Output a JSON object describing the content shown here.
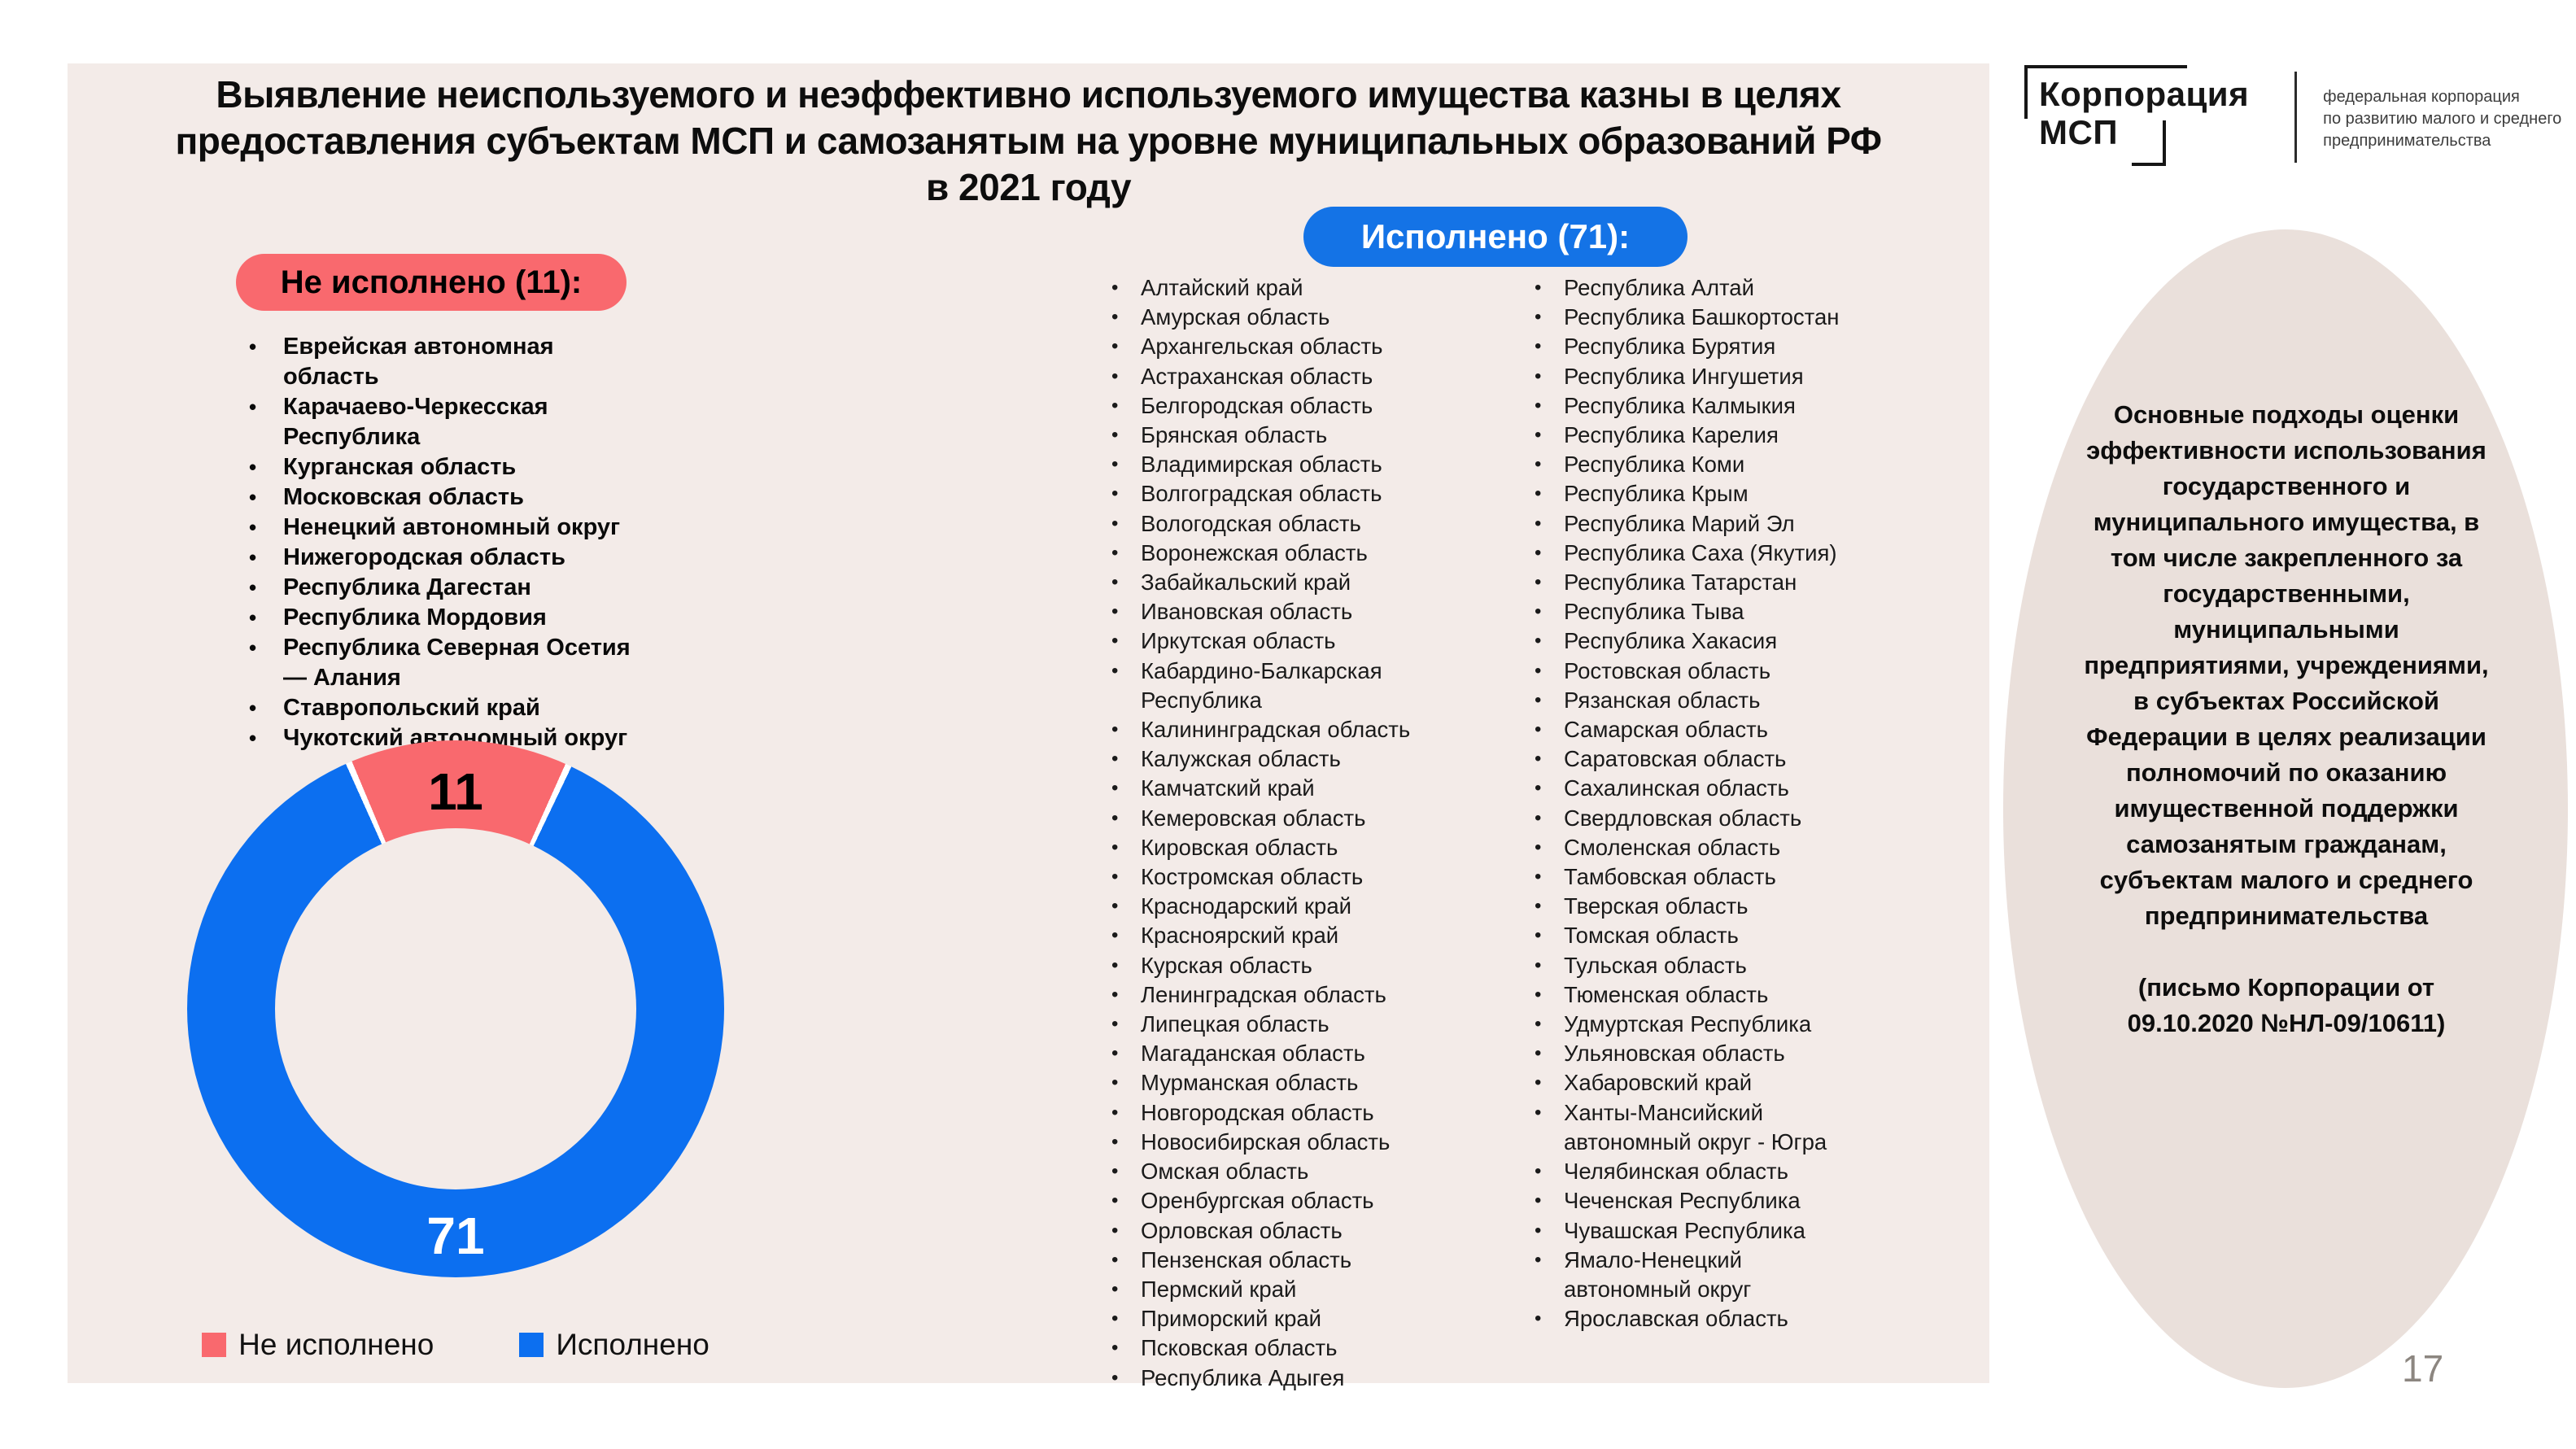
{
  "slide": {
    "title": "Выявление неиспользуемого и неэффективно используемого имущества казны в целях предоставления субъектам МСП и самозанятым на уровне муниципальных образований РФ в 2021 году",
    "page_number": "17"
  },
  "logo": {
    "line1": "Корпорация",
    "line2": "МСП",
    "descriptor": [
      "федеральная корпорация",
      "по развитию малого и среднего",
      "предпринимательства"
    ]
  },
  "not_executed": {
    "badge_label": "Не исполнено (11):",
    "items": [
      "Еврейская автономная область",
      "Карачаево-Черкесская Республика",
      "Курганская область",
      "Московская область",
      "Ненецкий автономный округ",
      "Нижегородская область",
      "Республика Дагестан",
      "Республика Мордовия",
      "Республика Северная Осетия — Алания",
      "Ставропольский край",
      "Чукотский автономный округ"
    ]
  },
  "executed": {
    "badge_label": "Исполнено (71):",
    "items_col1": [
      "Алтайский край",
      "Амурская область",
      "Архангельская область",
      "Астраханская область",
      "Белгородская область",
      "Брянская область",
      "Владимирская область",
      "Волгоградская область",
      "Вологодская область",
      "Воронежская область",
      "Забайкальский край",
      "Ивановская область",
      "Иркутская область",
      "Кабардино-Балкарская Республика",
      "Калининградская область",
      "Калужская область",
      "Камчатский край",
      "Кемеровская область",
      "Кировская область",
      "Костромская область",
      "Краснодарский край",
      "Красноярский край",
      "Курская область",
      "Ленинградская область",
      "Липецкая область",
      "Магаданская область",
      "Мурманская область",
      "Новгородская область",
      "Новосибирская область",
      "Омская область",
      "Оренбургская область",
      "Орловская область",
      "Пензенская область",
      "Пермский край",
      "Приморский край",
      "Псковская область",
      "Республика Адыгея"
    ],
    "items_col2": [
      "Республика Алтай",
      "Республика Башкортостан",
      "Республика Бурятия",
      "Республика Ингушетия",
      "Республика Калмыкия",
      "Республика Карелия",
      "Республика Коми",
      "Республика Крым",
      "Республика Марий Эл",
      "Республика Саха (Якутия)",
      "Республика Татарстан",
      "Республика Тыва",
      "Республика Хакасия",
      "Ростовская область",
      "Рязанская область",
      "Самарская область",
      "Саратовская область",
      "Сахалинская область",
      "Свердловская область",
      "Смоленская область",
      "Тамбовская область",
      "Тверская область",
      "Томская область",
      "Тульская область",
      "Тюменская область",
      "Удмуртская Республика",
      "Ульяновская область",
      "Хабаровский край",
      "Ханты-Мансийский автономный округ - Югра",
      "Челябинская область",
      "Чеченская Республика",
      "Чувашская Республика",
      "Ямало-Ненецкий автономный округ",
      "Ярославская область"
    ]
  },
  "side_note": {
    "body": "Основные подходы оценки эффективности использования государственного и муниципального имущества, в том числе закрепленного за государственными, муниципальными предприятиями, учреждениями, в субъектах Российской Федерации в целях реализации полномочий по оказанию имущественной поддержки самозанятым гражданам, субъектам малого и среднего предпринимательства",
    "reference": "(письмо Корпорации от 09.10.2020 №НЛ-09/10611)"
  },
  "chart_data": {
    "type": "pie",
    "subtype": "donut",
    "labels": [
      "Не исполнено",
      "Исполнено"
    ],
    "values": [
      11,
      71
    ],
    "colors": [
      "#F9696E",
      "#0C6FF0"
    ],
    "data_labels": [
      "11",
      "71"
    ],
    "legend_position": "bottom"
  },
  "theme": {
    "red": "#F9696E",
    "blue": "#1473E6",
    "panel_bg": "#F3EBE8",
    "oval_bg": "#EAE0DB"
  }
}
